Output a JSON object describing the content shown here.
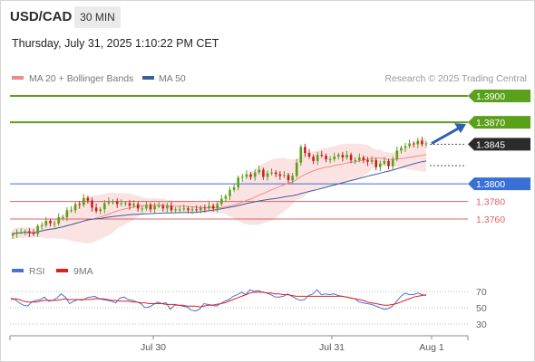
{
  "header": {
    "symbol": "USD/CAD",
    "timeframe": "30 MIN",
    "datetime": "Thursday, July 31, 2025 1:10:22 PM CET"
  },
  "legend": {
    "items": [
      {
        "label": "MA 20 + Bollinger Bands",
        "color": "#f08a8a"
      },
      {
        "label": "MA 50",
        "color": "#3a5fa0"
      }
    ],
    "credit": "Research © 2025 Trading Central"
  },
  "rsi_legend": {
    "items": [
      {
        "label": "RSI",
        "color": "#4a72d0"
      },
      {
        "label": "9MA",
        "color": "#e02020"
      }
    ]
  },
  "colors": {
    "resistance": "#5aa01a",
    "pivot": "#3a6fd8",
    "support": "#e06060",
    "current": "#2b2b2b",
    "candle_up": "#5aa01a",
    "candle_down": "#c82020",
    "bollinger_fill": "#fbdada",
    "arrow": "#2f5fb0"
  },
  "chart_data": [
    {
      "type": "line",
      "subtype": "candlestick",
      "title": "USD/CAD",
      "y_range": [
        1.3741,
        1.3917
      ],
      "x_labels": [
        "Jul 30",
        "Jul 31",
        "Aug 1"
      ],
      "levels": [
        {
          "value": 1.39,
          "label": "1.3900",
          "kind": "resistance"
        },
        {
          "value": 1.387,
          "label": "1.3870",
          "kind": "resistance"
        },
        {
          "value": 1.3845,
          "label": "1.3845",
          "kind": "current"
        },
        {
          "value": 1.38,
          "label": "1.3800",
          "kind": "pivot"
        },
        {
          "value": 1.378,
          "label": "1.3780",
          "kind": "support"
        },
        {
          "value": 1.376,
          "label": "1.3760",
          "kind": "support"
        }
      ],
      "close": [
        1.3743,
        1.3745,
        1.3745,
        1.3746,
        1.3744,
        1.3743,
        1.3752,
        1.3753,
        1.3758,
        1.3755,
        1.3755,
        1.3762,
        1.3762,
        1.377,
        1.377,
        1.3777,
        1.3776,
        1.3784,
        1.3781,
        1.3773,
        1.3769,
        1.3771,
        1.3778,
        1.378,
        1.378,
        1.3777,
        1.3778,
        1.3778,
        1.3775,
        1.3777,
        1.3772,
        1.3772,
        1.3776,
        1.3771,
        1.3775,
        1.3775,
        1.3772,
        1.3775,
        1.377,
        1.3771,
        1.3771,
        1.3772,
        1.377,
        1.3771,
        1.377,
        1.3773,
        1.3772,
        1.3775,
        1.3772,
        1.3777,
        1.3783,
        1.3786,
        1.3793,
        1.3796,
        1.3807,
        1.3808,
        1.3811,
        1.3808,
        1.3813,
        1.3816,
        1.3808,
        1.3812,
        1.3813,
        1.3811,
        1.3809,
        1.381,
        1.3804,
        1.3809,
        1.3824,
        1.3842,
        1.3835,
        1.3831,
        1.3826,
        1.3833,
        1.3832,
        1.3828,
        1.3828,
        1.3831,
        1.3833,
        1.383,
        1.3833,
        1.3827,
        1.3827,
        1.383,
        1.3827,
        1.3825,
        1.3827,
        1.3819,
        1.3823,
        1.3826,
        1.382,
        1.3828,
        1.3838,
        1.3841,
        1.3843,
        1.3846,
        1.3845,
        1.3849,
        1.3845,
        1.3846
      ]
    },
    {
      "type": "line",
      "title": "RSI",
      "series_names": [
        "RSI",
        "9MA"
      ],
      "y_ticks": [
        70,
        50,
        30
      ],
      "y_range": [
        20,
        80
      ],
      "rsi": [
        62,
        60,
        56,
        53,
        52,
        57,
        59,
        60,
        63,
        58,
        59,
        62,
        67,
        63,
        55,
        58,
        60,
        59,
        62,
        63,
        64,
        61,
        60,
        59,
        58,
        56,
        62,
        63,
        60,
        59,
        57,
        55,
        50,
        51,
        54,
        57,
        55,
        56,
        48,
        53,
        53,
        52,
        51,
        47,
        46,
        48,
        55,
        54,
        53,
        52,
        55,
        58,
        60,
        64,
        66,
        69,
        66,
        72,
        70,
        71,
        69,
        68,
        66,
        63,
        63,
        64,
        67,
        64,
        61,
        59,
        60,
        65,
        67,
        72,
        66,
        67,
        66,
        67,
        65,
        64,
        63,
        62,
        61,
        57,
        56,
        55,
        54,
        52,
        50,
        48,
        49,
        52,
        58,
        64,
        68,
        66,
        66,
        68,
        66,
        65
      ],
      "ma": [
        60,
        61,
        60,
        58,
        57,
        57,
        57,
        58,
        59,
        59,
        59,
        59,
        60,
        61,
        60,
        60,
        60,
        60,
        60,
        60,
        61,
        61,
        61,
        60,
        59,
        59,
        58,
        58,
        58,
        57,
        57,
        56,
        56,
        55,
        55,
        55,
        55,
        54,
        54,
        54,
        53,
        53,
        52,
        52,
        52,
        51,
        52,
        53,
        53,
        54,
        55,
        56,
        58,
        60,
        62,
        64,
        66,
        68,
        69,
        69,
        69,
        68,
        68,
        67,
        67,
        66,
        66,
        65,
        64,
        64,
        64,
        64,
        64,
        64,
        64,
        64,
        64,
        64,
        64,
        64,
        63,
        62,
        61,
        60,
        59,
        57,
        56,
        55,
        54,
        53,
        53,
        54,
        55,
        57,
        59,
        61,
        63,
        64,
        65,
        66
      ]
    }
  ]
}
